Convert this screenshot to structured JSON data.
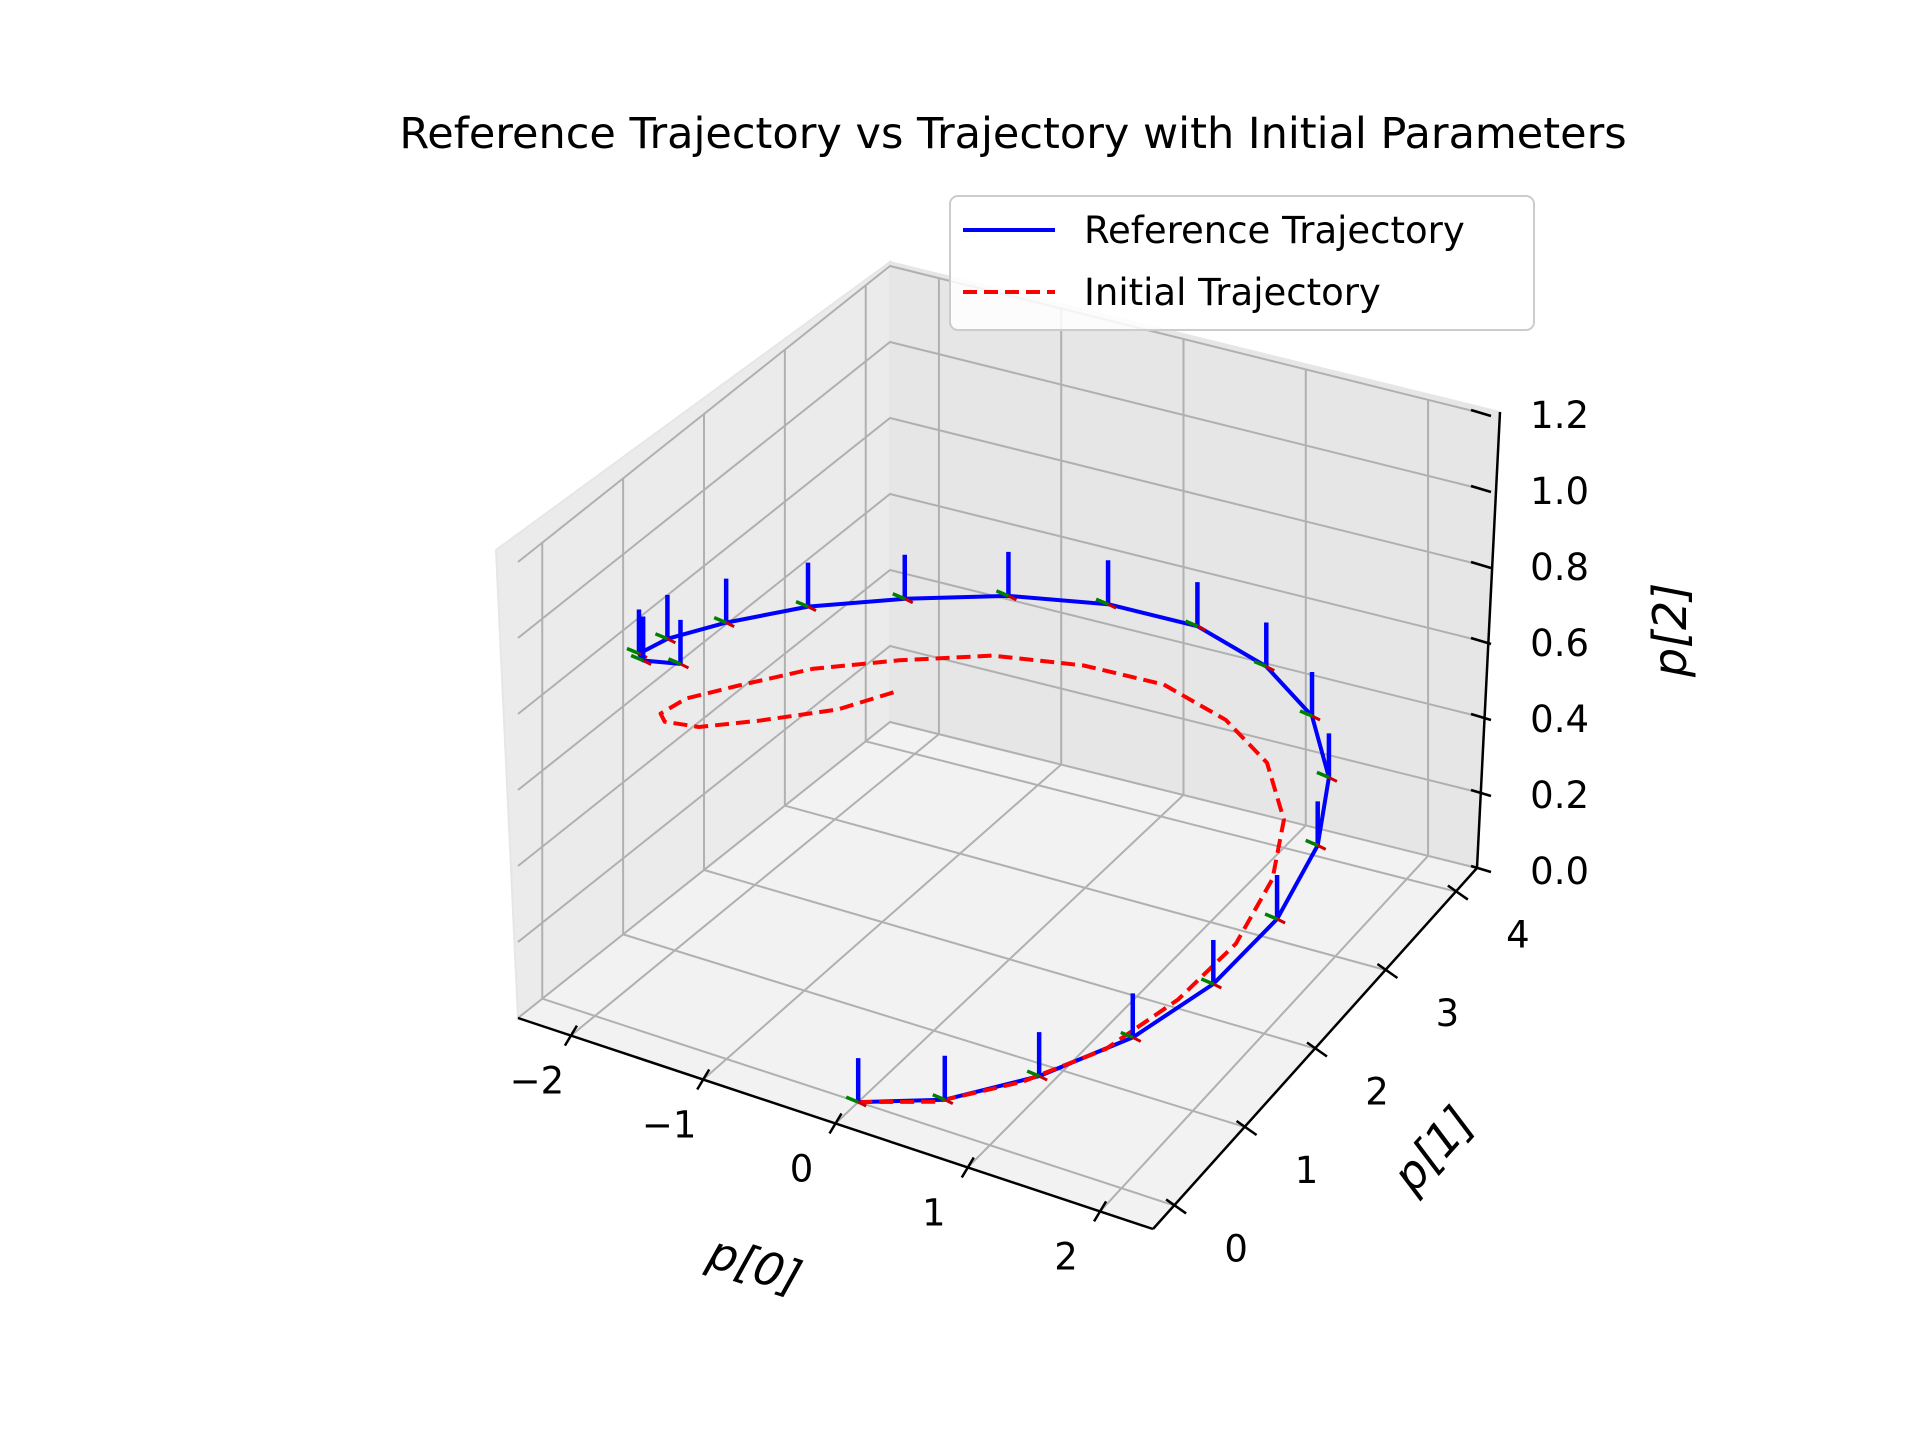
{
  "chart_data": {
    "type": "line",
    "projection": "3d",
    "title": "Reference Trajectory vs Trajectory with Initial Parameters",
    "xlabel": "p[0]",
    "ylabel": "p[1]",
    "zlabel": "p[2]",
    "xlim": [
      -2.4,
      2.4
    ],
    "ylim": [
      -0.3,
      4.3
    ],
    "zlim": [
      0.0,
      1.2
    ],
    "xticks": [
      "−2",
      "−1",
      "0",
      "1",
      "2"
    ],
    "yticks": [
      "0",
      "1",
      "2",
      "3",
      "4"
    ],
    "zticks": [
      "0.0",
      "0.2",
      "0.4",
      "0.6",
      "0.8",
      "1.0",
      "1.2"
    ],
    "grid": true,
    "legend": "top-right",
    "series": [
      {
        "name": "Reference Trajectory",
        "color": "#0000ff",
        "style": "solid",
        "x": [
          0.0,
          0.59,
          1.13,
          1.57,
          1.86,
          1.99,
          1.95,
          1.73,
          1.36,
          0.87,
          0.31,
          -0.28,
          -0.83,
          -1.31,
          -1.67,
          -1.9,
          -1.99,
          -1.92,
          -1.7,
          -1.35
        ],
        "y": [
          0.0,
          0.12,
          0.44,
          0.94,
          1.54,
          2.2,
          2.84,
          3.38,
          3.78,
          3.98,
          3.98,
          3.76,
          3.35,
          2.79,
          2.14,
          1.48,
          0.89,
          0.42,
          0.11,
          0.0
        ],
        "z": [
          0.0,
          0.05,
          0.11,
          0.16,
          0.21,
          0.26,
          0.32,
          0.37,
          0.42,
          0.47,
          0.53,
          0.58,
          0.63,
          0.68,
          0.74,
          0.79,
          0.84,
          0.89,
          0.95,
          1.0
        ]
      },
      {
        "name": "Initial Trajectory",
        "color": "#ff0000",
        "style": "dashed",
        "x": [
          0.0,
          0.53,
          1.02,
          1.41,
          1.67,
          1.79,
          1.75,
          1.56,
          1.22,
          0.78,
          0.28,
          -0.25,
          -0.75,
          -1.18,
          -1.5,
          -1.71,
          -1.79,
          -1.73,
          -1.53,
          -1.21,
          -0.8,
          -0.33,
          0.0
        ],
        "y": [
          0.0,
          0.11,
          0.4,
          0.85,
          1.39,
          1.98,
          2.56,
          3.05,
          3.4,
          3.58,
          3.58,
          3.39,
          3.02,
          2.51,
          1.93,
          1.33,
          0.8,
          0.38,
          0.1,
          0.0,
          0.07,
          0.3,
          0.55
        ],
        "z": [
          0.0,
          0.04,
          0.09,
          0.13,
          0.18,
          0.22,
          0.27,
          0.31,
          0.36,
          0.4,
          0.45,
          0.49,
          0.54,
          0.58,
          0.63,
          0.67,
          0.72,
          0.76,
          0.81,
          0.85,
          0.9,
          0.94,
          0.98
        ]
      }
    ]
  }
}
